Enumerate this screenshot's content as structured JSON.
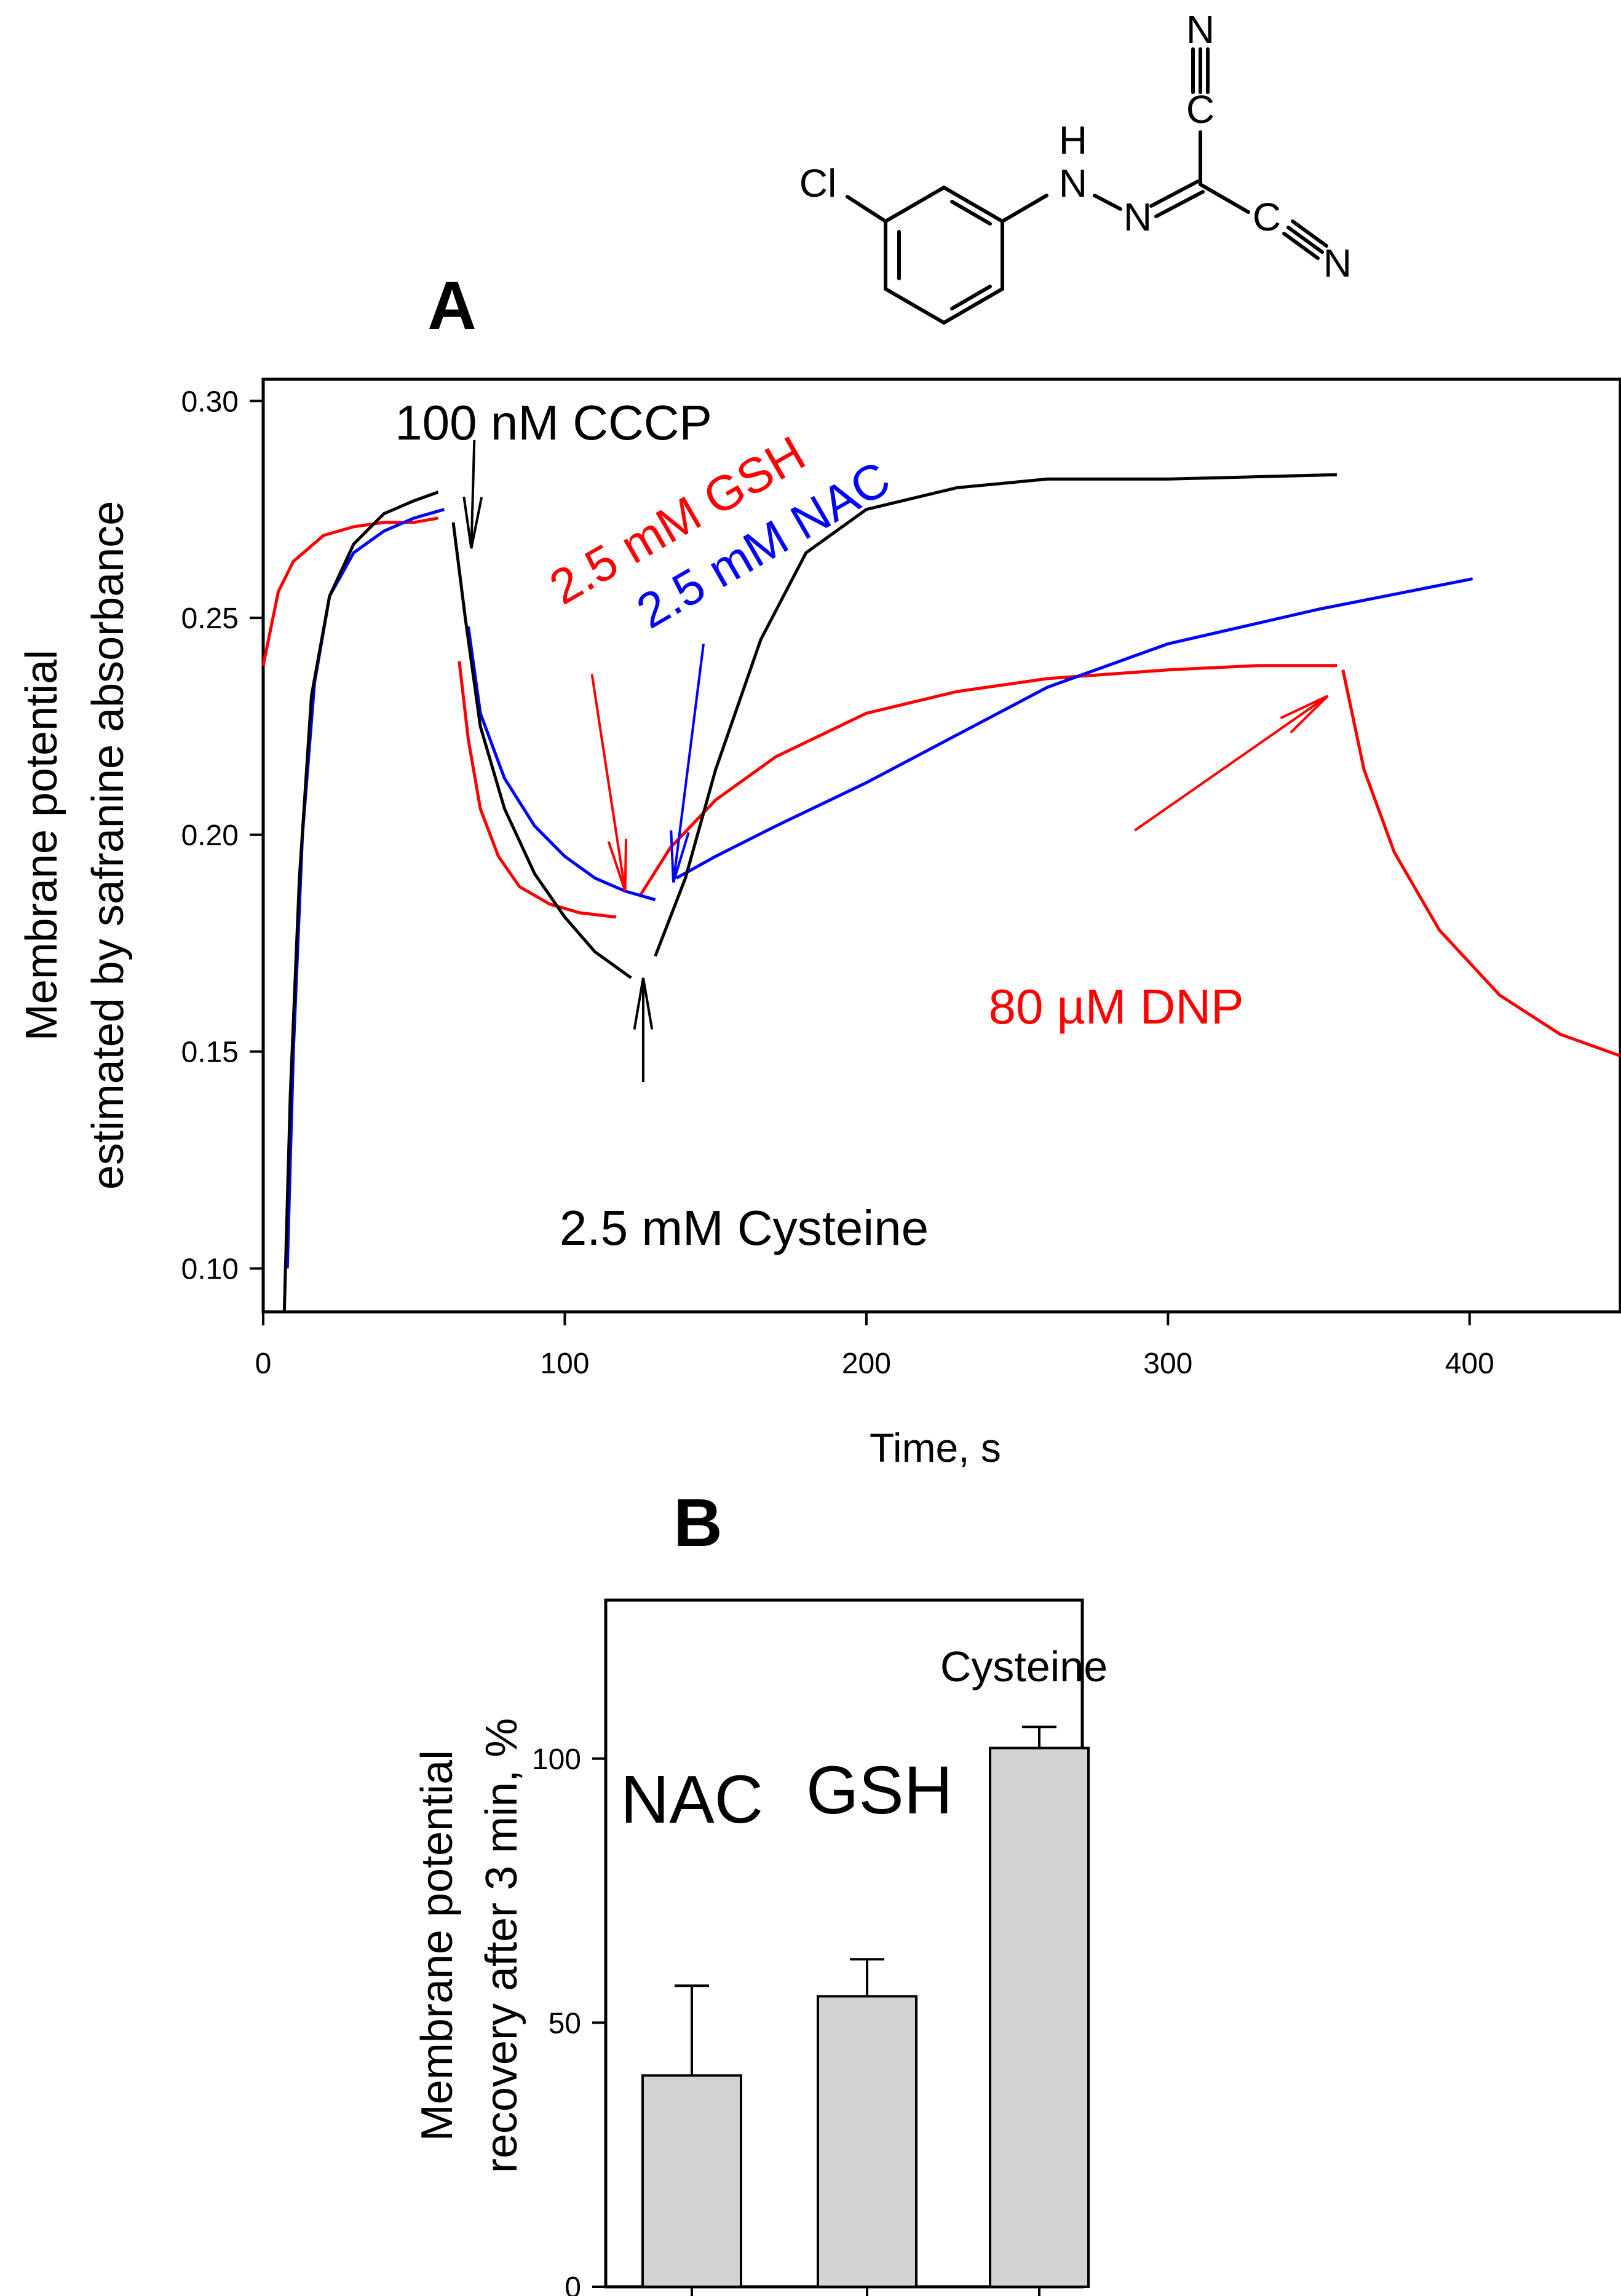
{
  "molecule": {
    "name": "CCCP",
    "atoms": {
      "cl": "Cl",
      "h": "H",
      "n": "N"
    }
  },
  "chart_data": [
    {
      "panel": "A",
      "type": "line",
      "xlabel": "Time, s",
      "ylabel": [
        "Membrane potential",
        "estimated by safranine absorbance"
      ],
      "xlim": [
        0,
        450
      ],
      "ylim": [
        0.09,
        0.305
      ],
      "xticks": [
        0,
        100,
        200,
        300,
        400
      ],
      "yticks": [
        0.1,
        0.15,
        0.2,
        0.25,
        0.3
      ],
      "ytick_labels": [
        "0.10",
        "0.15",
        "0.20",
        "0.25",
        "0.30"
      ],
      "grid": false,
      "series": [
        {
          "name": "GSH",
          "color": "#ff0000",
          "segments": [
            [
              [
                0,
                0.239
              ],
              [
                5,
                0.256
              ],
              [
                10,
                0.263
              ],
              [
                15,
                0.266
              ],
              [
                20,
                0.269
              ],
              [
                30,
                0.271
              ],
              [
                40,
                0.272
              ],
              [
                50,
                0.272
              ],
              [
                58,
                0.273
              ]
            ],
            [
              [
                65,
                0.24
              ],
              [
                68,
                0.222
              ],
              [
                72,
                0.206
              ],
              [
                78,
                0.195
              ],
              [
                85,
                0.188
              ],
              [
                95,
                0.184
              ],
              [
                105,
                0.182
              ],
              [
                117,
                0.181
              ]
            ],
            [
              [
                125,
                0.186
              ],
              [
                135,
                0.197
              ],
              [
                150,
                0.208
              ],
              [
                170,
                0.218
              ],
              [
                200,
                0.228
              ],
              [
                230,
                0.233
              ],
              [
                260,
                0.236
              ],
              [
                300,
                0.238
              ],
              [
                330,
                0.239
              ],
              [
                356,
                0.239
              ]
            ],
            [
              [
                358,
                0.238
              ],
              [
                365,
                0.215
              ],
              [
                375,
                0.196
              ],
              [
                390,
                0.178
              ],
              [
                410,
                0.163
              ],
              [
                430,
                0.154
              ],
              [
                450,
                0.149
              ]
            ]
          ]
        },
        {
          "name": "NAC",
          "color": "#0000ff",
          "segments": [
            [
              [
                8,
                0.1
              ],
              [
                10,
                0.15
              ],
              [
                13,
                0.2
              ],
              [
                17,
                0.235
              ],
              [
                22,
                0.255
              ],
              [
                30,
                0.265
              ],
              [
                40,
                0.27
              ],
              [
                50,
                0.273
              ],
              [
                60,
                0.275
              ]
            ],
            [
              [
                68,
                0.248
              ],
              [
                72,
                0.228
              ],
              [
                80,
                0.213
              ],
              [
                90,
                0.202
              ],
              [
                100,
                0.195
              ],
              [
                110,
                0.19
              ],
              [
                120,
                0.187
              ],
              [
                130,
                0.185
              ]
            ],
            [
              [
                137,
                0.19
              ],
              [
                150,
                0.195
              ],
              [
                170,
                0.202
              ],
              [
                200,
                0.212
              ],
              [
                230,
                0.223
              ],
              [
                260,
                0.234
              ],
              [
                300,
                0.244
              ],
              [
                350,
                0.252
              ],
              [
                401,
                0.259
              ]
            ]
          ]
        },
        {
          "name": "Cysteine",
          "color": "#000000",
          "segments": [
            [
              [
                7,
                0.09
              ],
              [
                9,
                0.14
              ],
              [
                12,
                0.19
              ],
              [
                16,
                0.232
              ],
              [
                22,
                0.255
              ],
              [
                30,
                0.267
              ],
              [
                40,
                0.274
              ],
              [
                50,
                0.277
              ],
              [
                58,
                0.279
              ]
            ],
            [
              [
                63,
                0.272
              ],
              [
                67,
                0.25
              ],
              [
                72,
                0.225
              ],
              [
                80,
                0.206
              ],
              [
                90,
                0.191
              ],
              [
                100,
                0.181
              ],
              [
                110,
                0.173
              ],
              [
                122,
                0.167
              ]
            ],
            [
              [
                130,
                0.172
              ],
              [
                140,
                0.19
              ],
              [
                150,
                0.215
              ],
              [
                165,
                0.245
              ],
              [
                180,
                0.265
              ],
              [
                200,
                0.275
              ],
              [
                230,
                0.28
              ],
              [
                260,
                0.282
              ],
              [
                300,
                0.282
              ],
              [
                356,
                0.283
              ]
            ]
          ]
        }
      ],
      "annotations": [
        {
          "text": "100 nM CCCP",
          "color": "#000000",
          "tip": [
            69,
            0.266
          ],
          "from": [
            70,
            0.291
          ]
        },
        {
          "text": "2.5 mM GSH",
          "color": "#ff0000",
          "tip": [
            120,
            0.187
          ],
          "from": [
            109,
            0.237
          ]
        },
        {
          "text": "2.5 mM NAC",
          "color": "#0000ff",
          "tip": [
            136,
            0.189
          ],
          "from": [
            146,
            0.244
          ]
        },
        {
          "text": "2.5 mM Cysteine",
          "color": "#000000",
          "tip": [
            126,
            0.167
          ],
          "from": [
            126,
            0.143
          ]
        },
        {
          "text": "80 µM DNP",
          "color": "#ff0000",
          "tip": [
            353,
            0.232
          ],
          "from": [
            289,
            0.201
          ]
        }
      ]
    },
    {
      "panel": "B",
      "type": "bar",
      "xlabel": "",
      "ylabel": [
        "Membrane potential",
        "recovery after 3 min, %"
      ],
      "ylim": [
        0,
        130
      ],
      "yticks": [
        0,
        50,
        100
      ],
      "categories": [
        "NAC",
        "GSH",
        "Cysteine"
      ],
      "values": [
        40,
        55,
        102
      ],
      "errors": [
        17,
        7,
        4
      ],
      "bar_color": "#d3d3d3"
    }
  ]
}
